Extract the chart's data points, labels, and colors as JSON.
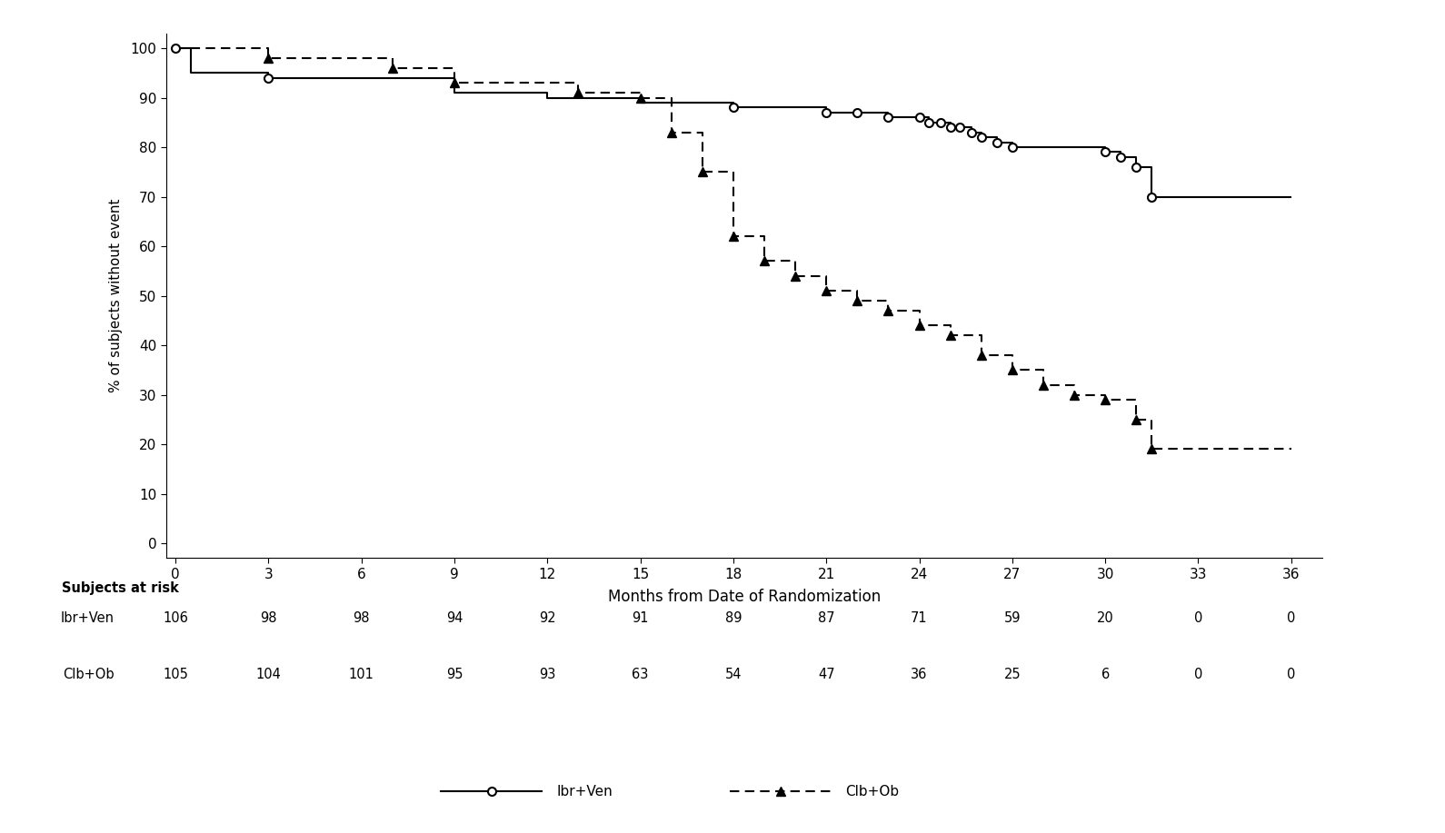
{
  "ibr_ven_step_x": [
    0,
    0.5,
    0.5,
    3,
    3,
    9,
    9,
    12,
    12,
    15,
    15,
    18,
    18,
    21,
    21,
    22,
    22,
    23,
    23,
    24,
    24,
    24.3,
    24.3,
    24.7,
    24.7,
    25,
    25,
    25.3,
    25.3,
    25.7,
    25.7,
    26,
    26,
    26.5,
    26.5,
    27,
    27,
    30,
    30,
    30.5,
    30.5,
    31,
    31,
    31.5,
    31.5,
    36
  ],
  "ibr_ven_step_y": [
    100,
    100,
    95,
    95,
    94,
    94,
    91,
    91,
    90,
    90,
    89,
    89,
    88,
    88,
    87,
    87,
    87,
    87,
    86,
    86,
    86,
    86,
    85,
    85,
    85,
    85,
    84,
    84,
    84,
    84,
    83,
    83,
    82,
    82,
    81,
    81,
    80,
    80,
    79,
    79,
    78,
    78,
    76,
    76,
    70,
    70
  ],
  "ibr_ven_censor_x": [
    0,
    3,
    18,
    21,
    22,
    23,
    24,
    24.3,
    24.7,
    25,
    25.3,
    25.7,
    26,
    26.5,
    27,
    30,
    30.5,
    31,
    31.5
  ],
  "ibr_ven_censor_y": [
    100,
    94,
    88,
    87,
    87,
    86,
    86,
    85,
    85,
    84,
    84,
    83,
    82,
    81,
    80,
    79,
    78,
    76,
    70
  ],
  "clb_ob_step_x": [
    0,
    3,
    3,
    7,
    7,
    9,
    9,
    13,
    13,
    15,
    15,
    16,
    16,
    17,
    17,
    18,
    18,
    19,
    19,
    20,
    20,
    21,
    21,
    22,
    22,
    23,
    23,
    24,
    24,
    25,
    25,
    26,
    26,
    27,
    27,
    28,
    28,
    29,
    29,
    30,
    30,
    31,
    31,
    31.5,
    31.5,
    36
  ],
  "clb_ob_step_y": [
    100,
    100,
    98,
    98,
    96,
    96,
    93,
    93,
    91,
    91,
    90,
    90,
    83,
    83,
    75,
    75,
    62,
    62,
    57,
    57,
    54,
    54,
    51,
    51,
    49,
    49,
    47,
    47,
    44,
    44,
    42,
    42,
    38,
    38,
    35,
    35,
    32,
    32,
    30,
    30,
    29,
    29,
    25,
    25,
    19,
    19
  ],
  "clb_ob_marker_x": [
    3,
    7,
    9,
    13,
    15,
    16,
    17,
    18,
    19,
    20,
    21,
    22,
    23,
    24,
    25,
    26,
    27,
    28,
    29,
    30,
    31,
    31.5
  ],
  "clb_ob_marker_y": [
    98,
    96,
    93,
    91,
    90,
    83,
    75,
    62,
    57,
    54,
    51,
    49,
    47,
    44,
    42,
    38,
    35,
    32,
    30,
    29,
    25,
    19
  ],
  "xlabel": "Months from Date of Randomization",
  "ylabel": "% of subjects without event",
  "xticks": [
    0,
    3,
    6,
    9,
    12,
    15,
    18,
    21,
    24,
    27,
    30,
    33,
    36
  ],
  "yticks": [
    0,
    10,
    20,
    30,
    40,
    50,
    60,
    70,
    80,
    90,
    100
  ],
  "xlim": [
    -0.3,
    37
  ],
  "ylim": [
    -3,
    103
  ],
  "risk_label": "Subjects at risk",
  "risk_times": [
    0,
    3,
    6,
    9,
    12,
    15,
    18,
    21,
    24,
    27,
    30,
    33,
    36
  ],
  "ibr_ven_risk": [
    106,
    98,
    98,
    94,
    92,
    91,
    89,
    87,
    71,
    59,
    20,
    0,
    0
  ],
  "clb_ob_risk": [
    105,
    104,
    101,
    95,
    93,
    63,
    54,
    47,
    36,
    25,
    6,
    0,
    0
  ],
  "legend_label1": "Ibr+Ven",
  "legend_label2": "Clb+Ob",
  "bg": "#ffffff",
  "lc": "#000000"
}
